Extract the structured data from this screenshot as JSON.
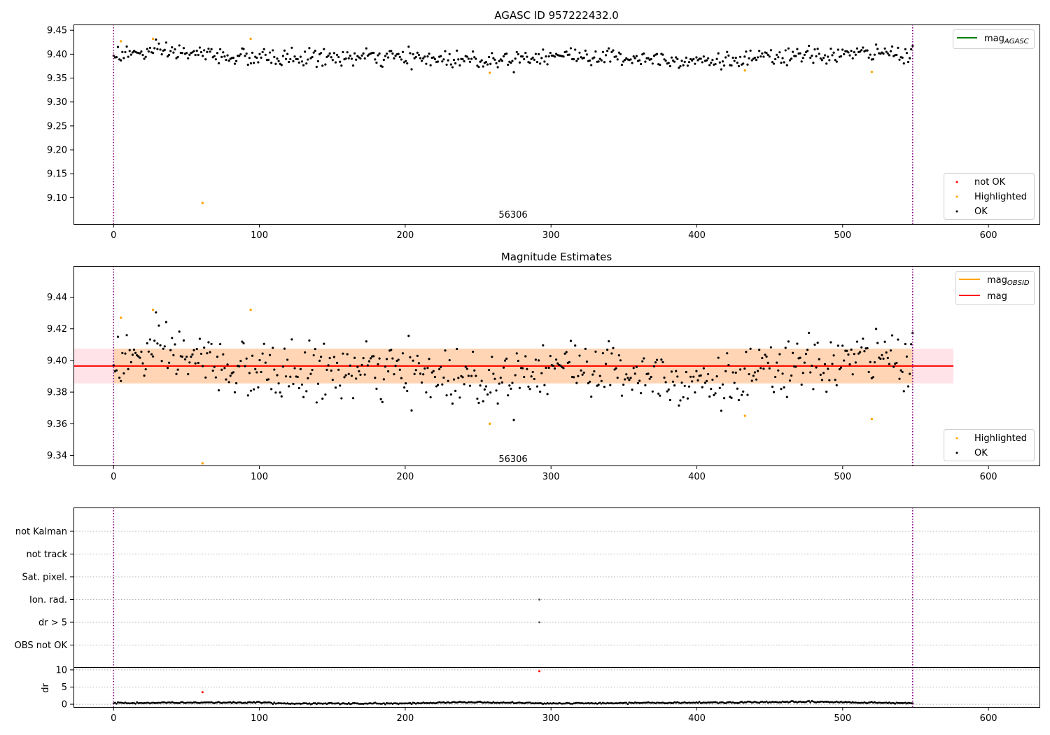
{
  "figure": {
    "vline_x": [
      0,
      548
    ],
    "x_ticks": [
      0,
      100,
      200,
      300,
      400,
      500,
      600
    ],
    "x_tick_labels": [
      "0",
      "100",
      "200",
      "300",
      "400",
      "500",
      "600"
    ]
  },
  "chart_data": [
    {
      "type": "scatter",
      "title": "AGASC ID 957222432.0",
      "xlabel": "",
      "ylabel": "",
      "xlim": [
        -27.5,
        635
      ],
      "ylim": [
        9.045,
        9.462
      ],
      "y_ticks": [
        9.1,
        9.15,
        9.2,
        9.25,
        9.3,
        9.35,
        9.4,
        9.45
      ],
      "y_tick_labels": [
        "9.10",
        "9.15",
        "9.20",
        "9.25",
        "9.30",
        "9.35",
        "9.40",
        "9.45"
      ],
      "annotation": {
        "text": "56306",
        "x": 274,
        "y": 9.064
      },
      "series": [
        {
          "name": "OK",
          "color": "#000000",
          "n_points": 548,
          "x_range": [
            0,
            548
          ],
          "baseline": 9.397,
          "scatter_sd": 0.009,
          "segment_means": [
            [
              0,
              9.4
            ],
            [
              40,
              9.405
            ],
            [
              95,
              9.392
            ],
            [
              180,
              9.393
            ],
            [
              260,
              9.388
            ],
            [
              300,
              9.398
            ],
            [
              330,
              9.395
            ],
            [
              420,
              9.386
            ],
            [
              460,
              9.394
            ],
            [
              520,
              9.402
            ],
            [
              548,
              9.402
            ]
          ]
        },
        {
          "name": "Highlighted",
          "color": "#ffa500",
          "points": [
            [
              5,
              9.427
            ],
            [
              27,
              9.432
            ],
            [
              61,
              9.089
            ],
            [
              94,
              9.432
            ],
            [
              258,
              9.361
            ],
            [
              433,
              9.366
            ],
            [
              520,
              9.363
            ]
          ]
        },
        {
          "name": "not OK",
          "color": "#ff0000",
          "points": []
        }
      ],
      "lines": [
        {
          "name": "mag_AGASC",
          "label_main": "mag",
          "label_sub": "AGASC",
          "color": "#008000"
        }
      ],
      "legends": [
        {
          "placement": "top-right",
          "entries": [
            "mag_AGASC"
          ]
        },
        {
          "placement": "bottom-right",
          "entries": [
            "not OK",
            "Highlighted",
            "OK"
          ]
        }
      ]
    },
    {
      "type": "scatter",
      "title": "Magnitude Estimates",
      "xlabel": "",
      "ylabel": "",
      "xlim": [
        -27.5,
        635
      ],
      "ylim": [
        9.3336,
        9.4597
      ],
      "y_ticks": [
        9.34,
        9.36,
        9.38,
        9.4,
        9.42,
        9.44
      ],
      "y_tick_labels": [
        "9.34",
        "9.36",
        "9.38",
        "9.40",
        "9.42",
        "9.44"
      ],
      "annotation": {
        "text": "56306",
        "x": 274,
        "y": 9.3375
      },
      "bands": [
        {
          "x": [
            -27.5,
            576
          ],
          "y": [
            9.3855,
            9.4075
          ],
          "color": "#ffc0cb",
          "opacity": 0.45
        },
        {
          "x": [
            0,
            548
          ],
          "y": [
            9.3855,
            9.4075
          ],
          "color": "#ffa500",
          "opacity": 0.22
        }
      ],
      "series": [
        {
          "name": "OK",
          "color": "#000000",
          "n_points": 548,
          "x_range": [
            0,
            548
          ],
          "baseline": 9.397,
          "scatter_sd": 0.009
        },
        {
          "name": "Highlighted",
          "color": "#ffa500",
          "points": [
            [
              5,
              9.427
            ],
            [
              27,
              9.432
            ],
            [
              61,
              9.335
            ],
            [
              94,
              9.432
            ],
            [
              258,
              9.36
            ],
            [
              433,
              9.365
            ],
            [
              520,
              9.363
            ]
          ]
        }
      ],
      "lines": [
        {
          "name": "mag_OBSID",
          "label_main": "mag",
          "label_sub": "OBSID",
          "color": "#ffa500",
          "x": [
            0,
            548
          ],
          "y": 9.3965
        },
        {
          "name": "mag",
          "label_main": "mag",
          "label_sub": "",
          "color": "#ff0000",
          "x": [
            -27.5,
            576
          ],
          "y": 9.3965
        }
      ],
      "legends": [
        {
          "placement": "top-right",
          "entries": [
            "mag_OBSID",
            "mag"
          ]
        },
        {
          "placement": "bottom-right",
          "entries": [
            "Highlighted",
            "OK"
          ]
        }
      ]
    },
    {
      "type": "scatter",
      "title": "",
      "xlabel": "",
      "ylabel": "",
      "xlim": [
        -27.5,
        635
      ],
      "categories": [
        "not Kalman",
        "not track",
        "Sat. pixel.",
        "Ion. rad.",
        "dr > 5",
        "OBS not OK"
      ],
      "grid": "horizontal-dotted",
      "points": [
        {
          "category": "Ion. rad.",
          "x": 292
        },
        {
          "category": "dr > 5",
          "x": 292
        }
      ]
    },
    {
      "type": "scatter",
      "title": "",
      "xlabel": "",
      "ylabel": "dr",
      "xlim": [
        -27.5,
        635
      ],
      "ylim": [
        -0.8,
        10.8
      ],
      "y_ticks": [
        0,
        5,
        10
      ],
      "y_tick_labels": [
        "0",
        "5",
        "10"
      ],
      "grid": "horizontal-dotted",
      "series": [
        {
          "name": "OK",
          "color": "#000000",
          "n_points": 548,
          "x_range": [
            0,
            548
          ],
          "baseline": 0.35,
          "scatter_sd": 0.2,
          "segment_means": [
            [
              0,
              0.35
            ],
            [
              100,
              0.55
            ],
            [
              120,
              0.2
            ],
            [
              200,
              0.2
            ],
            [
              240,
              0.6
            ],
            [
              300,
              0.25
            ],
            [
              400,
              0.45
            ],
            [
              480,
              0.7
            ],
            [
              548,
              0.3
            ]
          ]
        },
        {
          "name": "not OK",
          "color": "#ff0000",
          "points": [
            [
              61,
              3.5
            ],
            [
              292,
              9.6
            ]
          ]
        }
      ]
    }
  ]
}
